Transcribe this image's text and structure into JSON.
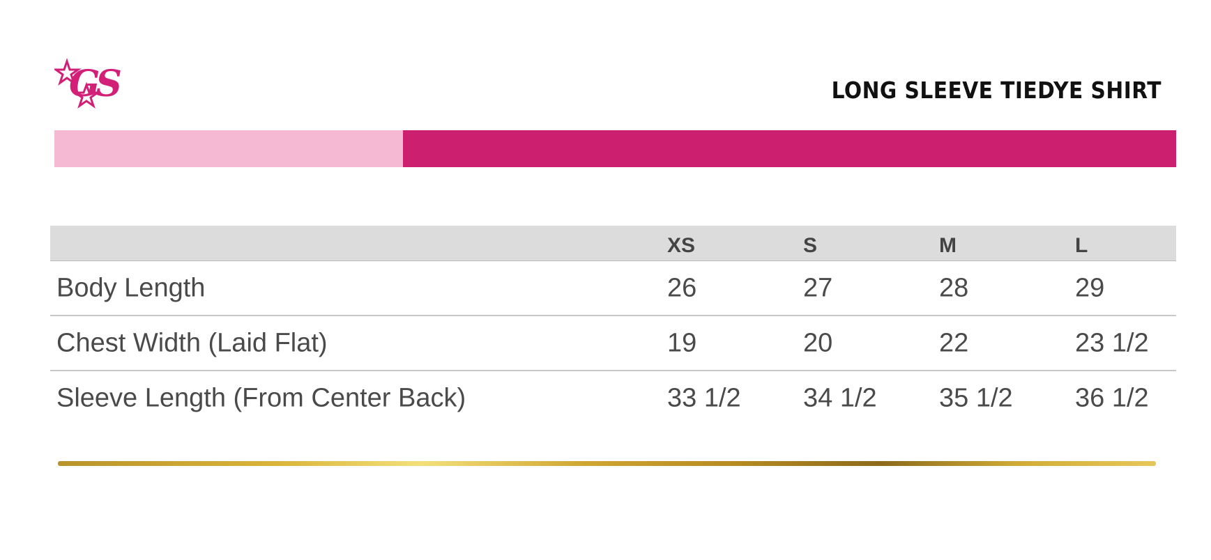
{
  "header": {
    "logo": "GS",
    "title": "LONG SLEEVE TIEDYE SHIRT"
  },
  "table": {
    "columns": [
      "XS",
      "S",
      "M",
      "L"
    ],
    "rows": [
      {
        "label": "Body Length",
        "values": [
          "26",
          "27",
          "28",
          "29"
        ]
      },
      {
        "label": "Chest Width (Laid Flat)",
        "values": [
          "19",
          "20",
          "22",
          "23 1/2"
        ]
      },
      {
        "label": "Sleeve Length (From Center Back)",
        "values": [
          "33 1/2",
          "34 1/2",
          "35 1/2",
          "36 1/2"
        ]
      }
    ]
  }
}
